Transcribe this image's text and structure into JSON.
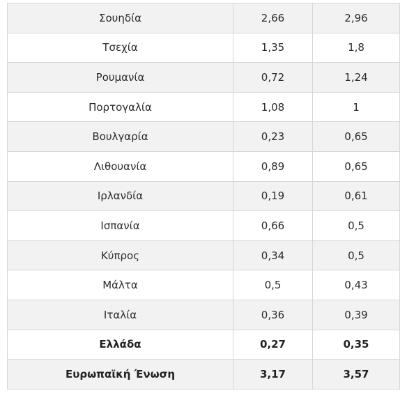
{
  "table": {
    "rows": [
      {
        "country": "Σουηδία",
        "v1": "2,66",
        "v2": "2,96"
      },
      {
        "country": "Τσεχία",
        "v1": "1,35",
        "v2": "1,8"
      },
      {
        "country": "Ρουμανία",
        "v1": "0,72",
        "v2": "1,24"
      },
      {
        "country": "Πορτογαλία",
        "v1": "1,08",
        "v2": "1"
      },
      {
        "country": "Βουλγαρία",
        "v1": "0,23",
        "v2": "0,65"
      },
      {
        "country": "Λιθουανία",
        "v1": "0,89",
        "v2": "0,65"
      },
      {
        "country": "Ιρλανδία",
        "v1": "0,19",
        "v2": "0,61"
      },
      {
        "country": "Ισπανία",
        "v1": "0,66",
        "v2": "0,5"
      },
      {
        "country": "Κύπρος",
        "v1": "0,34",
        "v2": "0,5"
      },
      {
        "country": "Μάλτα",
        "v1": "0,5",
        "v2": "0,43"
      },
      {
        "country": "Ιταλία",
        "v1": "0,36",
        "v2": "0,39"
      },
      {
        "country": "Ελλάδα",
        "v1": "0,27",
        "v2": "0,35"
      },
      {
        "country": "Ευρωπαϊκή Ένωση",
        "v1": "3,17",
        "v2": "3,57"
      }
    ]
  }
}
